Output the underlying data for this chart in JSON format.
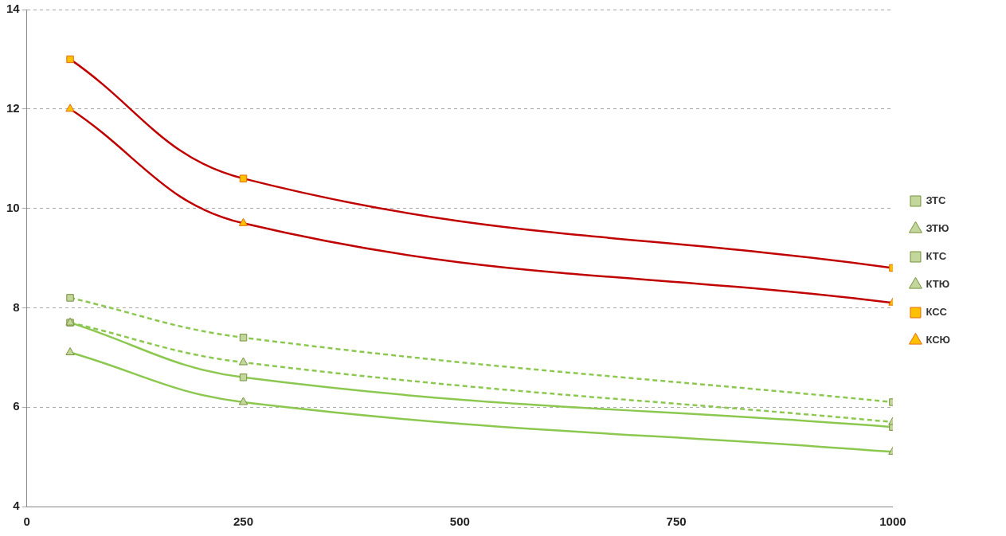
{
  "chart_data": {
    "type": "line",
    "x": [
      50,
      250,
      1000
    ],
    "series": [
      {
        "name": "ЗТС",
        "color": "#8cc850",
        "marker": "square",
        "line_style": "dashed",
        "values": [
          8.2,
          7.4,
          6.1
        ]
      },
      {
        "name": "ЗТЮ",
        "color": "#8cc850",
        "marker": "triangle",
        "line_style": "dashed",
        "values": [
          7.7,
          6.9,
          5.7
        ]
      },
      {
        "name": "КТС",
        "color": "#8cc850",
        "marker": "square",
        "line_style": "solid",
        "values": [
          7.7,
          6.6,
          5.6
        ]
      },
      {
        "name": "КТЮ",
        "color": "#8cc850",
        "marker": "triangle",
        "line_style": "solid",
        "values": [
          7.1,
          6.1,
          5.1
        ]
      },
      {
        "name": "КСС",
        "color": "#c00000",
        "marker": "square",
        "line_style": "solid",
        "values": [
          13,
          10.6,
          8.8
        ]
      },
      {
        "name": "КСЮ",
        "color": "#c00000",
        "marker": "triangle",
        "line_style": "solid",
        "values": [
          12,
          9.7,
          8.1
        ]
      }
    ],
    "xlim": [
      0,
      1000
    ],
    "xticks": [
      0,
      250,
      500,
      750,
      1000
    ],
    "ylim": [
      4,
      14
    ],
    "yticks": [
      4,
      6,
      8,
      10,
      12,
      14
    ],
    "grid": "y",
    "legend": "right"
  }
}
